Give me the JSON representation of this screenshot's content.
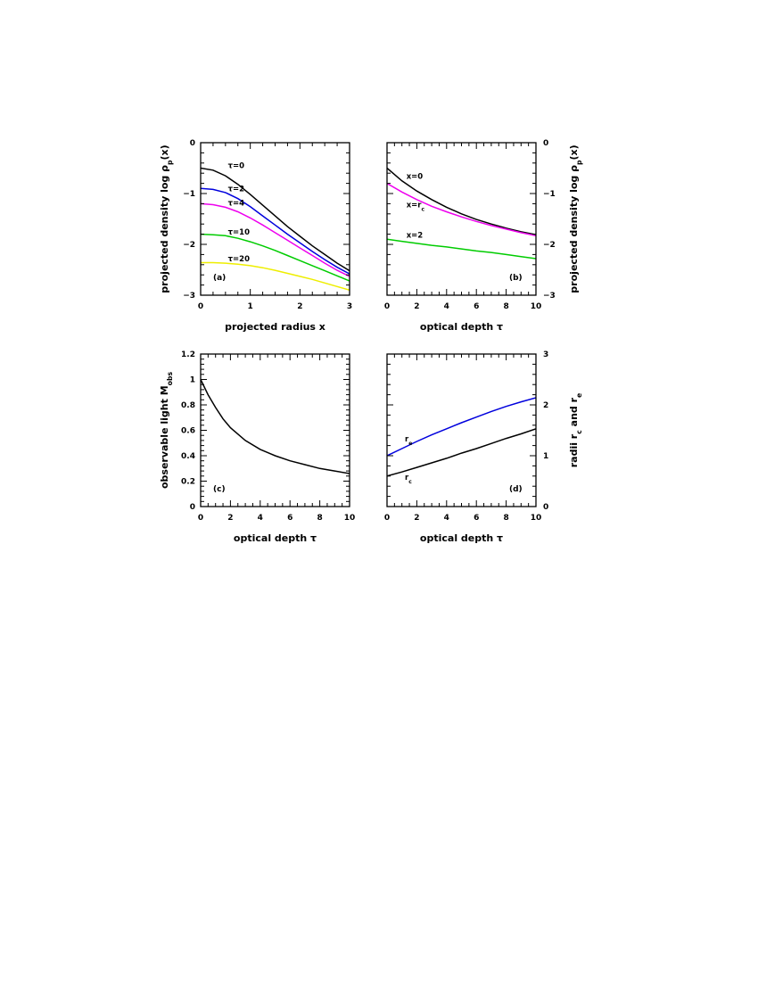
{
  "chart_data": [
    {
      "id": "a",
      "type": "line",
      "panel_label": "(a)",
      "xlabel": "projected radius  x",
      "ylabel": "projected density  log ρp(x)",
      "xlim": [
        0,
        3
      ],
      "ylim": [
        -3,
        0
      ],
      "xticks": [
        0,
        1,
        2,
        3
      ],
      "yticks": [
        -3,
        -2,
        -1,
        0
      ],
      "ytick_labels": [
        "−3",
        "−2",
        "−1",
        "0"
      ],
      "series": [
        {
          "name": "τ=0",
          "color": "#000000",
          "x": [
            0,
            0.25,
            0.5,
            0.75,
            1,
            1.25,
            1.5,
            1.75,
            2,
            2.25,
            2.5,
            2.75,
            3
          ],
          "y": [
            -0.5,
            -0.54,
            -0.65,
            -0.82,
            -1.02,
            -1.23,
            -1.44,
            -1.65,
            -1.84,
            -2.03,
            -2.2,
            -2.37,
            -2.52
          ],
          "label_at": [
            0.55,
            -0.45
          ]
        },
        {
          "name": "τ=2",
          "color": "#0000dd",
          "x": [
            0,
            0.25,
            0.5,
            0.75,
            1,
            1.25,
            1.5,
            1.75,
            2,
            2.25,
            2.5,
            2.75,
            3
          ],
          "y": [
            -0.9,
            -0.92,
            -0.98,
            -1.1,
            -1.26,
            -1.44,
            -1.62,
            -1.8,
            -1.97,
            -2.14,
            -2.3,
            -2.45,
            -2.58
          ],
          "label_at": [
            0.55,
            -0.9
          ]
        },
        {
          "name": "τ=4",
          "color": "#ee00ee",
          "x": [
            0,
            0.25,
            0.5,
            0.75,
            1,
            1.25,
            1.5,
            1.75,
            2,
            2.25,
            2.5,
            2.75,
            3
          ],
          "y": [
            -1.2,
            -1.22,
            -1.27,
            -1.36,
            -1.48,
            -1.62,
            -1.77,
            -1.92,
            -2.07,
            -2.22,
            -2.37,
            -2.51,
            -2.63
          ],
          "label_at": [
            0.55,
            -1.18
          ]
        },
        {
          "name": "τ=10",
          "color": "#00cc00",
          "x": [
            0,
            0.25,
            0.5,
            0.75,
            1,
            1.25,
            1.5,
            1.75,
            2,
            2.25,
            2.5,
            2.75,
            3
          ],
          "y": [
            -1.8,
            -1.81,
            -1.83,
            -1.88,
            -1.95,
            -2.03,
            -2.12,
            -2.22,
            -2.32,
            -2.42,
            -2.52,
            -2.62,
            -2.72
          ],
          "label_at": [
            0.55,
            -1.75
          ]
        },
        {
          "name": "τ=20",
          "color": "#eeee00",
          "x": [
            0,
            0.25,
            0.5,
            0.75,
            1,
            1.25,
            1.5,
            1.75,
            2,
            2.25,
            2.5,
            2.75,
            3
          ],
          "y": [
            -2.36,
            -2.36,
            -2.37,
            -2.39,
            -2.42,
            -2.46,
            -2.51,
            -2.57,
            -2.63,
            -2.69,
            -2.76,
            -2.83,
            -2.9
          ],
          "label_at": [
            0.55,
            -2.28
          ]
        }
      ]
    },
    {
      "id": "b",
      "type": "line",
      "panel_label": "(b)",
      "xlabel": "optical depth  τ",
      "ylabel": "projected density  log ρp(x)",
      "ylabel_side": "right",
      "xlim": [
        0,
        10
      ],
      "ylim": [
        -3,
        0
      ],
      "xticks": [
        0,
        2,
        4,
        6,
        8,
        10
      ],
      "yticks": [
        -3,
        -2,
        -1,
        0
      ],
      "ytick_labels": [
        "−3",
        "−2",
        "−1",
        "0"
      ],
      "series": [
        {
          "name": "x=0",
          "color": "#000000",
          "x": [
            0,
            1,
            2,
            3,
            4,
            5,
            6,
            7,
            8,
            9,
            10
          ],
          "y": [
            -0.5,
            -0.75,
            -0.95,
            -1.12,
            -1.27,
            -1.4,
            -1.51,
            -1.6,
            -1.68,
            -1.75,
            -1.81
          ],
          "label_at": [
            1.3,
            -0.66
          ]
        },
        {
          "name": "x=rc",
          "color": "#ee00ee",
          "x": [
            0,
            1,
            2,
            3,
            4,
            5,
            6,
            7,
            8,
            9,
            10
          ],
          "y": [
            -0.8,
            -0.97,
            -1.12,
            -1.25,
            -1.36,
            -1.46,
            -1.55,
            -1.63,
            -1.7,
            -1.77,
            -1.83
          ],
          "label_at": [
            1.3,
            -1.22
          ]
        },
        {
          "name": "x=2",
          "color": "#00cc00",
          "x": [
            0,
            1,
            2,
            3,
            4,
            5,
            6,
            7,
            8,
            9,
            10
          ],
          "y": [
            -1.9,
            -1.94,
            -1.98,
            -2.02,
            -2.05,
            -2.09,
            -2.13,
            -2.16,
            -2.2,
            -2.24,
            -2.28
          ],
          "label_at": [
            1.3,
            -1.82
          ]
        }
      ]
    },
    {
      "id": "c",
      "type": "line",
      "panel_label": "(c)",
      "xlabel": "optical depth  τ",
      "ylabel": "observable light  Mobs",
      "xlim": [
        0,
        10
      ],
      "ylim": [
        0,
        1.2
      ],
      "xticks": [
        0,
        2,
        4,
        6,
        8,
        10
      ],
      "yticks": [
        0,
        0.2,
        0.4,
        0.6,
        0.8,
        1,
        1.2
      ],
      "ytick_labels": [
        "0",
        "0.2",
        "0.4",
        "0.6",
        "0.8",
        "1",
        "1.2"
      ],
      "series": [
        {
          "name": "",
          "color": "#000000",
          "x": [
            0,
            0.5,
            1,
            1.5,
            2,
            3,
            4,
            5,
            6,
            7,
            8,
            9,
            10
          ],
          "y": [
            1.0,
            0.88,
            0.78,
            0.69,
            0.62,
            0.52,
            0.45,
            0.4,
            0.36,
            0.33,
            0.3,
            0.28,
            0.26
          ]
        }
      ]
    },
    {
      "id": "d",
      "type": "line",
      "panel_label": "(d)",
      "xlabel": "optical depth  τ",
      "ylabel": "radii  rc  and  re",
      "ylabel_side": "right",
      "xlim": [
        0,
        10
      ],
      "ylim": [
        0,
        3
      ],
      "xticks": [
        0,
        2,
        4,
        6,
        8,
        10
      ],
      "yticks": [
        0,
        1,
        2,
        3
      ],
      "ytick_labels": [
        "0",
        "1",
        "2",
        "3"
      ],
      "series": [
        {
          "name": "re",
          "color": "#0000dd",
          "x": [
            0,
            1,
            2,
            3,
            4,
            5,
            6,
            7,
            8,
            9,
            10
          ],
          "y": [
            1.0,
            1.14,
            1.28,
            1.41,
            1.53,
            1.65,
            1.76,
            1.87,
            1.97,
            2.06,
            2.14
          ],
          "label_at": [
            1.2,
            1.33
          ]
        },
        {
          "name": "rc",
          "color": "#000000",
          "x": [
            0,
            1,
            2,
            3,
            4,
            5,
            6,
            7,
            8,
            9,
            10
          ],
          "y": [
            0.6,
            0.68,
            0.77,
            0.86,
            0.95,
            1.05,
            1.14,
            1.24,
            1.34,
            1.43,
            1.53
          ],
          "label_at": [
            1.2,
            0.58
          ]
        }
      ]
    }
  ]
}
